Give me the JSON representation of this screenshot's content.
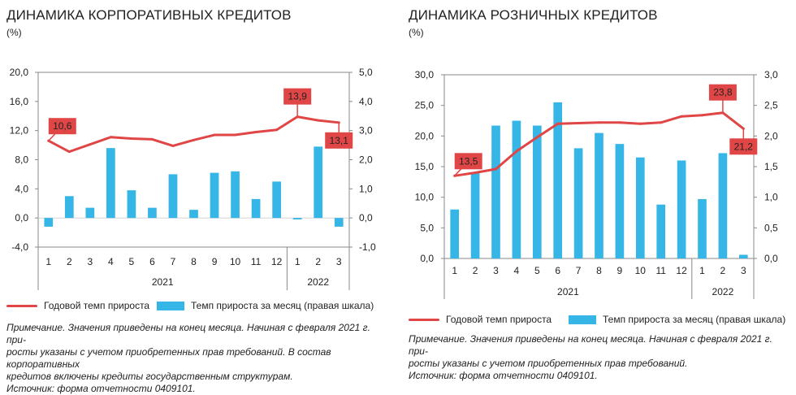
{
  "charts": [
    {
      "title": "ДИНАМИКА КОРПОРАТИВНЫХ КРЕДИТОВ",
      "unit": "(%)",
      "legend": {
        "line_label": "Годовой темп прироста",
        "bar_label": "Темп прироста за месяц (правая шкала)"
      },
      "note_lines": [
        "Примечание. Значения приведены на конец месяца. Начиная с февраля 2021 г. при-",
        "росты указаны с учетом приобретенных прав требований. В состав корпоративных",
        "кредитов включены кредиты государственным структурам.",
        "Источник: форма отчетности 0409101."
      ]
    },
    {
      "title": "ДИНАМИКА РОЗНИЧНЫХ КРЕДИТОВ",
      "unit": "(%)",
      "legend": {
        "line_label": "Годовой темп прироста",
        "bar_label": "Темп прироста за месяц (правая шкала)"
      },
      "note_lines": [
        "Примечание. Значения приведены на конец месяца. Начиная с февраля 2021 г. при-",
        "росты указаны с учетом приобретенных прав требований.",
        "Источник: форма отчетности 0409101."
      ]
    }
  ],
  "colors": {
    "line": "#e04646",
    "bar": "#35b6e6",
    "label_bg": "#e04646",
    "axis": "#888888"
  },
  "chart_data": [
    {
      "type": "bar+line",
      "categories": [
        "1",
        "2",
        "3",
        "4",
        "5",
        "6",
        "7",
        "8",
        "9",
        "10",
        "11",
        "12",
        "1",
        "2",
        "3"
      ],
      "year_groups": [
        {
          "label": "2021",
          "count": 12
        },
        {
          "label": "2022",
          "count": 3
        }
      ],
      "left_axis": {
        "ylim": [
          -4,
          20
        ],
        "ticks": [
          "-4,0",
          "0,0",
          "4,0",
          "8,0",
          "12,0",
          "16,0",
          "20,0"
        ],
        "tick_values": [
          -4,
          0,
          4,
          8,
          12,
          16,
          20
        ]
      },
      "right_axis": {
        "ylim": [
          -1,
          5
        ],
        "ticks": [
          "-1,0",
          "0,0",
          "1,0",
          "2,0",
          "3,0",
          "4,0",
          "5,0"
        ],
        "tick_values": [
          -1,
          0,
          1,
          2,
          3,
          4,
          5
        ]
      },
      "series": [
        {
          "name": "Годовой темп прироста",
          "kind": "line",
          "axis": "left",
          "values": [
            10.6,
            9.1,
            10.1,
            11.1,
            10.9,
            10.8,
            9.9,
            10.7,
            11.4,
            11.4,
            11.8,
            12.1,
            13.9,
            13.4,
            13.1
          ]
        },
        {
          "name": "Темп прироста за месяц (правая шкала)",
          "kind": "bar",
          "axis": "right",
          "values": [
            -0.3,
            0.75,
            0.35,
            2.4,
            0.95,
            0.35,
            1.5,
            0.28,
            1.55,
            1.6,
            0.65,
            1.25,
            -0.05,
            2.45,
            -0.3
          ]
        }
      ],
      "point_labels": [
        {
          "index": 0,
          "text": "10,6",
          "pos": "left-up"
        },
        {
          "index": 12,
          "text": "13,9",
          "pos": "up"
        },
        {
          "index": 14,
          "text": "13,1",
          "pos": "down"
        }
      ]
    },
    {
      "type": "bar+line",
      "categories": [
        "1",
        "2",
        "3",
        "4",
        "5",
        "6",
        "7",
        "8",
        "9",
        "10",
        "11",
        "12",
        "1",
        "2",
        "3"
      ],
      "year_groups": [
        {
          "label": "2021",
          "count": 12
        },
        {
          "label": "2022",
          "count": 3
        }
      ],
      "left_axis": {
        "ylim": [
          0,
          30
        ],
        "ticks": [
          "0,0",
          "5,0",
          "10,0",
          "15,0",
          "20,0",
          "25,0",
          "30,0"
        ],
        "tick_values": [
          0,
          5,
          10,
          15,
          20,
          25,
          30
        ]
      },
      "right_axis": {
        "ylim": [
          0,
          3
        ],
        "ticks": [
          "0,0",
          "0,5",
          "1,0",
          "1,5",
          "2,0",
          "2,5",
          "3,0"
        ],
        "tick_values": [
          0,
          0.5,
          1,
          1.5,
          2,
          2.5,
          3
        ]
      },
      "series": [
        {
          "name": "Годовой темп прироста",
          "kind": "line",
          "axis": "left",
          "values": [
            13.5,
            14.0,
            14.6,
            17.5,
            19.8,
            22.0,
            22.1,
            22.2,
            22.2,
            22.0,
            22.2,
            23.2,
            23.4,
            23.8,
            21.2
          ]
        },
        {
          "name": "Темп прироста за месяц (правая шкала)",
          "kind": "bar",
          "axis": "right",
          "values": [
            0.8,
            1.4,
            2.17,
            2.25,
            2.17,
            2.55,
            1.8,
            2.05,
            1.87,
            1.65,
            0.88,
            1.6,
            0.97,
            1.72,
            0.06
          ]
        }
      ],
      "point_labels": [
        {
          "index": 0,
          "text": "13,5",
          "pos": "left-up"
        },
        {
          "index": 13,
          "text": "23,8",
          "pos": "up"
        },
        {
          "index": 14,
          "text": "21,2",
          "pos": "down"
        }
      ]
    }
  ]
}
